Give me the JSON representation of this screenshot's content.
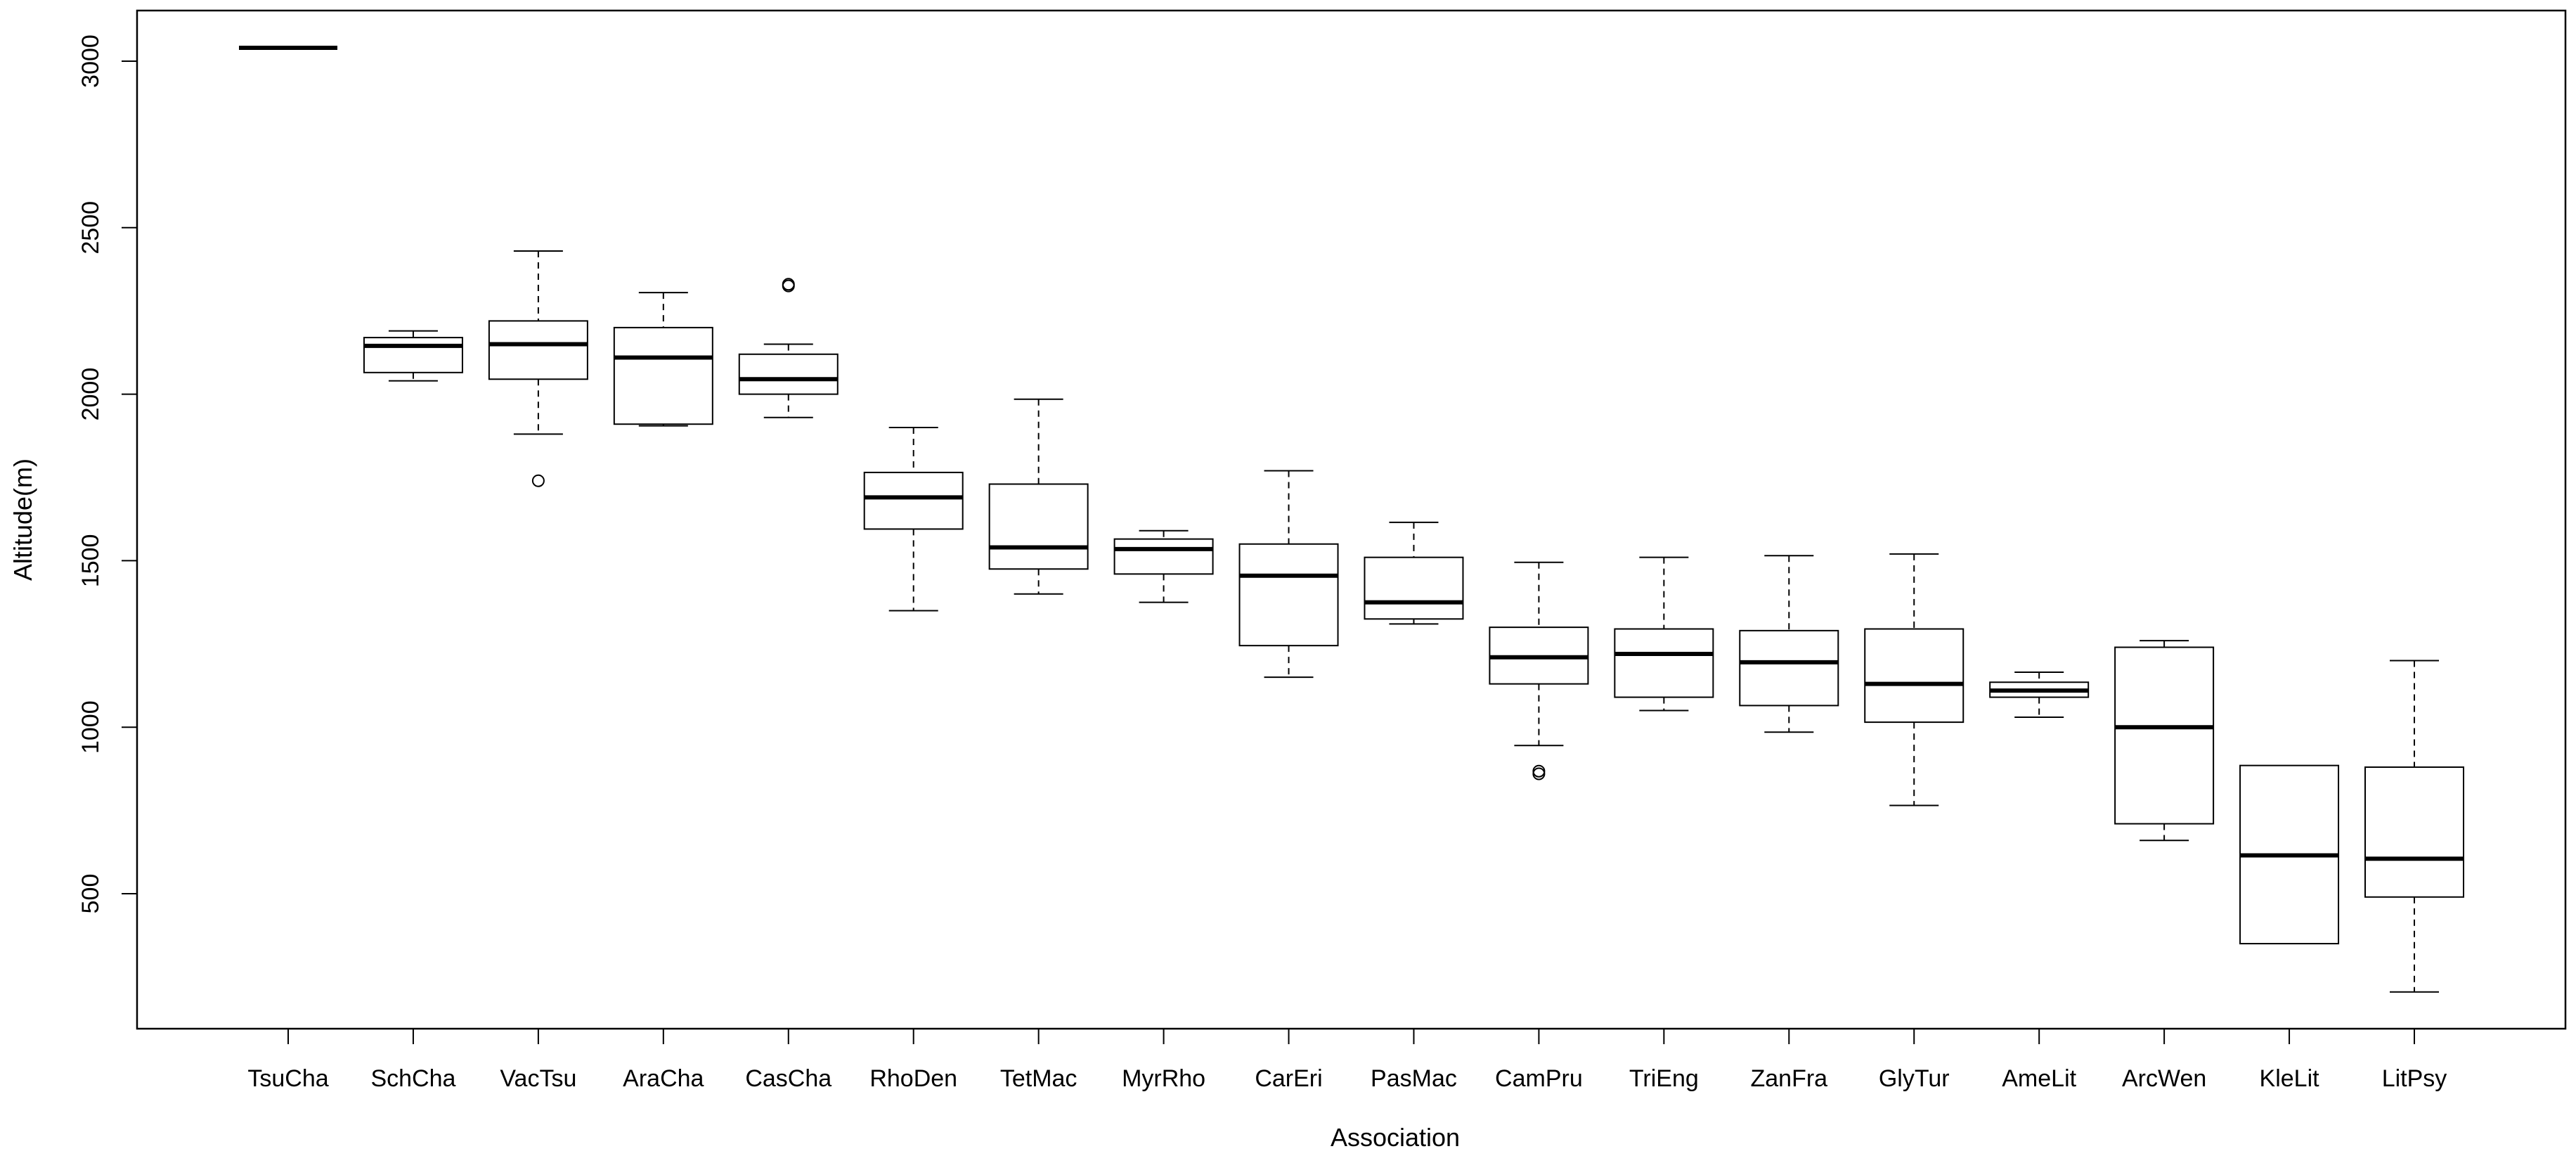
{
  "chart_data": {
    "type": "boxplot",
    "title": "",
    "xlabel": "Association",
    "ylabel": "Altitude(m)",
    "ylim": [
      180,
      3150
    ],
    "yticks": [
      500,
      1000,
      1500,
      2000,
      2500,
      3000
    ],
    "ytick_labels": [
      "500",
      "1000",
      "1500",
      "2000",
      "2500",
      "3000"
    ],
    "grid": false,
    "legend": "none",
    "categories": [
      "TsuCha",
      "SchCha",
      "VacTsu",
      "AraCha",
      "CasCha",
      "RhoDen",
      "TetMac",
      "MyrRho",
      "CarEri",
      "PasMac",
      "CamPru",
      "TriEng",
      "ZanFra",
      "GlyTur",
      "AmeLit",
      "ArcWen",
      "KleLit",
      "LitPsy"
    ],
    "boxes": [
      {
        "category": "TsuCha",
        "whisker_low": 3040,
        "q1": 3040,
        "median": 3040,
        "q3": 3040,
        "whisker_high": 3040,
        "outliers": []
      },
      {
        "category": "SchCha",
        "whisker_low": 2040,
        "q1": 2065,
        "median": 2145,
        "q3": 2170,
        "whisker_high": 2190,
        "outliers": []
      },
      {
        "category": "VacTsu",
        "whisker_low": 1880,
        "q1": 2045,
        "median": 2150,
        "q3": 2220,
        "whisker_high": 2430,
        "outliers": [
          1740
        ]
      },
      {
        "category": "AraCha",
        "whisker_low": 1905,
        "q1": 1910,
        "median": 2110,
        "q3": 2200,
        "whisker_high": 2305,
        "outliers": []
      },
      {
        "category": "CasCha",
        "whisker_low": 1930,
        "q1": 2000,
        "median": 2045,
        "q3": 2120,
        "whisker_high": 2150,
        "outliers": [
          2325,
          2330
        ]
      },
      {
        "category": "RhoDen",
        "whisker_low": 1350,
        "q1": 1595,
        "median": 1690,
        "q3": 1765,
        "whisker_high": 1900,
        "outliers": []
      },
      {
        "category": "TetMac",
        "whisker_low": 1400,
        "q1": 1475,
        "median": 1540,
        "q3": 1730,
        "whisker_high": 1985,
        "outliers": []
      },
      {
        "category": "MyrRho",
        "whisker_low": 1375,
        "q1": 1460,
        "median": 1535,
        "q3": 1565,
        "whisker_high": 1590,
        "outliers": []
      },
      {
        "category": "CarEri",
        "whisker_low": 1150,
        "q1": 1245,
        "median": 1455,
        "q3": 1550,
        "whisker_high": 1770,
        "outliers": []
      },
      {
        "category": "PasMac",
        "whisker_low": 1310,
        "q1": 1325,
        "median": 1375,
        "q3": 1510,
        "whisker_high": 1615,
        "outliers": []
      },
      {
        "category": "CamPru",
        "whisker_low": 945,
        "q1": 1130,
        "median": 1210,
        "q3": 1300,
        "whisker_high": 1495,
        "outliers": [
          860,
          868
        ]
      },
      {
        "category": "TriEng",
        "whisker_low": 1050,
        "q1": 1090,
        "median": 1220,
        "q3": 1295,
        "whisker_high": 1510,
        "outliers": []
      },
      {
        "category": "ZanFra",
        "whisker_low": 985,
        "q1": 1065,
        "median": 1195,
        "q3": 1290,
        "whisker_high": 1515,
        "outliers": []
      },
      {
        "category": "GlyTur",
        "whisker_low": 765,
        "q1": 1015,
        "median": 1130,
        "q3": 1295,
        "whisker_high": 1520,
        "outliers": []
      },
      {
        "category": "AmeLit",
        "whisker_low": 1030,
        "q1": 1090,
        "median": 1110,
        "q3": 1135,
        "whisker_high": 1165,
        "outliers": []
      },
      {
        "category": "ArcWen",
        "whisker_low": 660,
        "q1": 710,
        "median": 1000,
        "q3": 1240,
        "whisker_high": 1260,
        "outliers": []
      },
      {
        "category": "KleLit",
        "whisker_low": 350,
        "q1": 350,
        "median": 615,
        "q3": 885,
        "whisker_high": 885,
        "outliers": []
      },
      {
        "category": "LitPsy",
        "whisker_low": 205,
        "q1": 490,
        "median": 605,
        "q3": 880,
        "whisker_high": 1200,
        "outliers": []
      }
    ]
  }
}
